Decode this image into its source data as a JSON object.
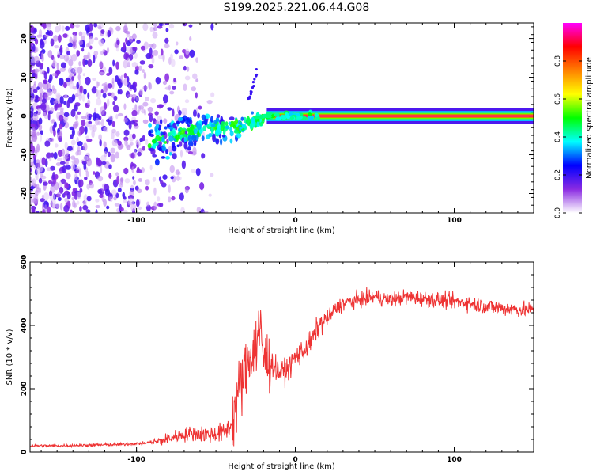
{
  "title": "S199.2025.221.06.44.G08",
  "chart_data": [
    {
      "type": "heatmap",
      "xlabel": "Height of straight line (km)",
      "ylabel": "Frequency (Hz)",
      "xlim": [
        -167,
        150
      ],
      "ylim": [
        -25,
        24
      ],
      "xticks": [
        -100,
        0,
        100
      ],
      "yticks": [
        -20,
        -10,
        0,
        10,
        20
      ],
      "xtick_labels": [
        "-100",
        "0",
        "100"
      ],
      "ytick_labels": [
        "-20",
        "-10",
        "0",
        "10",
        "20"
      ],
      "colorbar": {
        "label": "Normalized spectral amplitude",
        "range": [
          0,
          1
        ],
        "ticks": [
          0.0,
          0.2,
          0.4,
          0.6,
          0.8
        ],
        "tick_labels": [
          "0.0",
          "0.2",
          "0.4",
          "0.6",
          "0.8"
        ],
        "colors": [
          "#ffffff",
          "#8a2be2",
          "#0000ff",
          "#00ffff",
          "#00ff00",
          "#ffff00",
          "#ff8000",
          "#ff0000",
          "#ff00ff"
        ]
      },
      "features": [
        {
          "x_range": [
            -167,
            -60
          ],
          "freq_range": [
            -25,
            24
          ],
          "amplitude": "low, scattered noise"
        },
        {
          "x_range": [
            -90,
            -20
          ],
          "freq_center": [
            -8,
            0
          ],
          "amplitude": "medium, converging trace"
        },
        {
          "x_range": [
            -25,
            150
          ],
          "freq_center": 0,
          "amplitude": "high, steady carrier line"
        }
      ]
    },
    {
      "type": "line",
      "xlabel": "Height of straight line (km)",
      "ylabel": "SNR (10 * v/v)",
      "xlim": [
        -167,
        150
      ],
      "ylim": [
        0,
        600
      ],
      "xticks": [
        -100,
        0,
        100
      ],
      "yticks": [
        0,
        200,
        400,
        600
      ],
      "xtick_labels": [
        "-100",
        "0",
        "100"
      ],
      "ytick_labels": [
        "0",
        "200",
        "400",
        "600"
      ],
      "color": "#ee3333",
      "series": [
        {
          "name": "SNR",
          "x": [
            -167,
            -150,
            -130,
            -110,
            -95,
            -85,
            -75,
            -65,
            -55,
            -45,
            -40,
            -35,
            -30,
            -25,
            -22,
            -20,
            -15,
            -10,
            -5,
            0,
            5,
            10,
            15,
            20,
            25,
            30,
            40,
            50,
            60,
            70,
            80,
            90,
            100,
            110,
            120,
            130,
            140,
            150
          ],
          "values": [
            20,
            20,
            22,
            24,
            28,
            35,
            50,
            60,
            55,
            60,
            90,
            200,
            280,
            350,
            380,
            300,
            280,
            250,
            260,
            300,
            320,
            350,
            400,
            420,
            450,
            470,
            480,
            490,
            480,
            490,
            485,
            480,
            475,
            470,
            460,
            455,
            450,
            450
          ]
        }
      ]
    }
  ]
}
